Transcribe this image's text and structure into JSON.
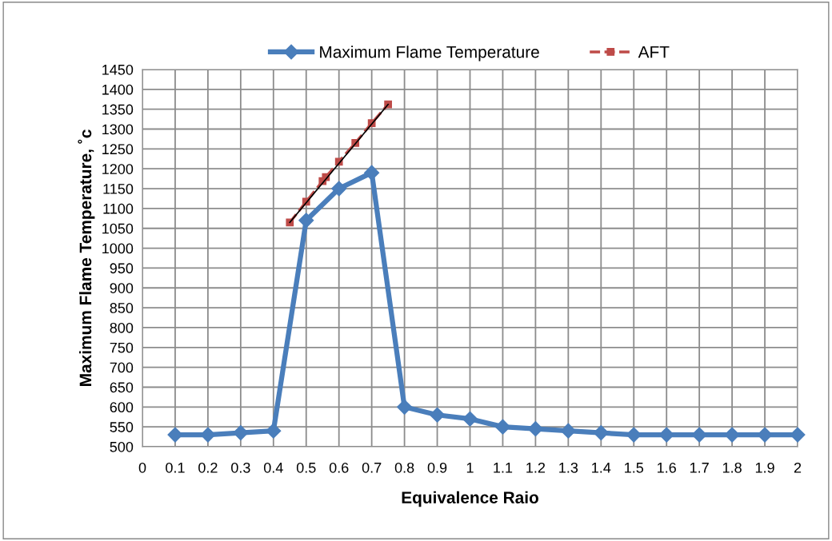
{
  "chart_data": {
    "type": "line",
    "xlabel": "Equivalence Raio",
    "ylabel": "Maximum Flame Temperature, ˚c",
    "xlim": [
      0,
      2
    ],
    "xticks": [
      0,
      0.1,
      0.2,
      0.3,
      0.4,
      0.5,
      0.6,
      0.7,
      0.8,
      0.9,
      1,
      1.1,
      1.2,
      1.3,
      1.4,
      1.5,
      1.6,
      1.7,
      1.8,
      1.9,
      2
    ],
    "ylim": [
      500,
      1450
    ],
    "yticks": [
      500,
      550,
      600,
      650,
      700,
      750,
      800,
      850,
      900,
      950,
      1000,
      1050,
      1100,
      1150,
      1200,
      1250,
      1300,
      1350,
      1400,
      1450
    ],
    "grid": true,
    "legend": "top",
    "series": [
      {
        "name": "Maximum Flame Temperature",
        "color": "#4a7ebb",
        "marker": "diamond",
        "line_style": "solid",
        "x": [
          0.1,
          0.2,
          0.3,
          0.4,
          0.5,
          0.6,
          0.7,
          0.8,
          0.9,
          1,
          1.1,
          1.2,
          1.3,
          1.4,
          1.5,
          1.6,
          1.7,
          1.8,
          1.9,
          2
        ],
        "values": [
          530,
          530,
          535,
          540,
          1070,
          1150,
          1190,
          600,
          580,
          570,
          550,
          545,
          540,
          535,
          530,
          530,
          530,
          530,
          530,
          530
        ]
      },
      {
        "name": "AFT",
        "color": "#be4b48",
        "marker": "square",
        "line_style": "dashed",
        "x": [
          0.45,
          0.5,
          0.55,
          0.56,
          0.6,
          0.65,
          0.7,
          0.75
        ],
        "values": [
          1065,
          1117,
          1169,
          1179,
          1218,
          1265,
          1315,
          1362
        ]
      },
      {
        "color": "#000000",
        "marker": "none",
        "line_style": "solid",
        "x": [
          0.45,
          0.75
        ],
        "values": [
          1065,
          1362
        ]
      }
    ]
  }
}
